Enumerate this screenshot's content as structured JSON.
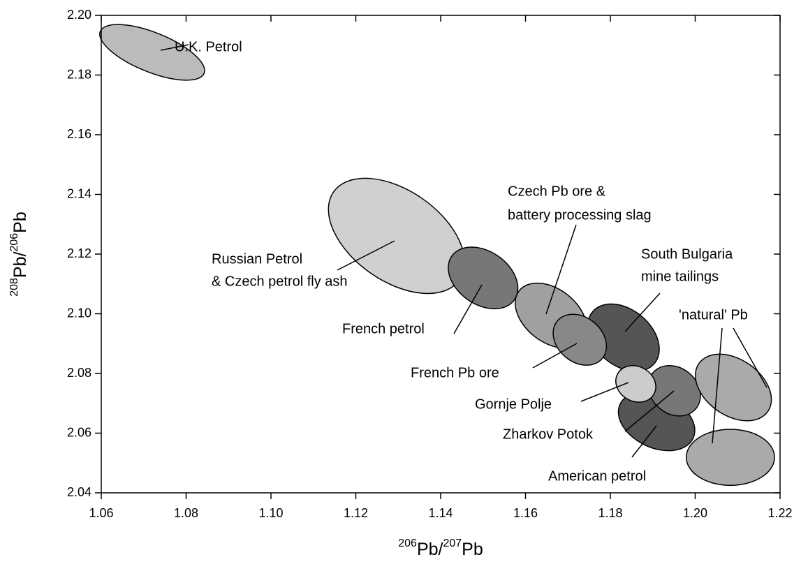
{
  "chart_data": {
    "type": "ellipse-fields",
    "xlabel": [
      "206",
      "Pb/",
      "207",
      "Pb"
    ],
    "ylabel": [
      "208",
      "Pb/",
      "206",
      "Pb"
    ],
    "xlim": [
      1.06,
      1.22
    ],
    "ylim": [
      2.04,
      2.2
    ],
    "xticks": [
      1.06,
      1.08,
      {
        "value": 1.1,
        "label": "1.10"
      },
      1.12,
      1.14,
      1.16,
      1.18,
      {
        "value": 1.2,
        "label": "1.20"
      },
      1.22
    ],
    "yticks": [
      2.04,
      2.06,
      2.08,
      {
        "value": 2.1,
        "label": "2.10"
      },
      2.12,
      2.14,
      2.16,
      2.18,
      {
        "value": 2.2,
        "label": "2.20"
      }
    ],
    "regions": [
      {
        "label": [
          "U.K. Petrol"
        ],
        "color": "#bbbbbb",
        "ellipses": [
          {
            "x": 1.072,
            "y": 2.1876,
            "rx": 0.0132,
            "ry": 0.0066,
            "angle": 22
          }
        ]
      },
      {
        "label": [
          "Russian Petrol",
          "& Czech petrol fly ash"
        ],
        "color": "#d0d0d0",
        "ellipses": [
          {
            "x": 1.1296,
            "y": 2.1261,
            "rx": 0.0181,
            "ry": 0.0152,
            "angle": 35
          }
        ]
      },
      {
        "label": [
          "French petrol"
        ],
        "color": "#777777",
        "ellipses": [
          {
            "x": 1.15,
            "y": 2.112,
            "rx": 0.009,
            "ry": 0.0089,
            "angle": 35
          }
        ]
      },
      {
        "label": [
          "Czech Pb ore &",
          "battery processing slag"
        ],
        "color": "#a0a0a0",
        "ellipses": [
          {
            "x": 1.166,
            "y": 2.0994,
            "rx": 0.0095,
            "ry": 0.0089,
            "angle": 38
          }
        ]
      },
      {
        "label": [
          "South Bulgaria",
          "mine tailings"
        ],
        "color": "#555555",
        "ellipses": [
          {
            "x": 1.1831,
            "y": 2.092,
            "rx": 0.0095,
            "ry": 0.0094,
            "angle": 40
          }
        ]
      },
      {
        "label": [
          "French Pb ore"
        ],
        "color": "#888888",
        "ellipses": [
          {
            "x": 1.1728,
            "y": 2.0913,
            "rx": 0.0069,
            "ry": 0.0075,
            "angle": 40
          }
        ]
      },
      {
        "label": [
          "American petrol"
        ],
        "color": "#555555",
        "ellipses": [
          {
            "x": 1.1909,
            "y": 2.064,
            "rx": 0.0095,
            "ry": 0.0089,
            "angle": 25
          }
        ]
      },
      {
        "label": [
          "Zharkov Potok"
        ],
        "color": "#777777",
        "ellipses": [
          {
            "x": 1.1951,
            "y": 2.0742,
            "rx": 0.0066,
            "ry": 0.0077,
            "angle": 40
          }
        ]
      },
      {
        "label": [
          "Gornje Polje"
        ],
        "color": "#cccccc",
        "ellipses": [
          {
            "x": 1.186,
            "y": 2.0765,
            "rx": 0.0049,
            "ry": 0.0058,
            "angle": 30
          }
        ]
      },
      {
        "label": [
          "'natural' Pb"
        ],
        "color": "#aaaaaa",
        "ellipses": [
          {
            "x": 1.209,
            "y": 2.0753,
            "rx": 0.0099,
            "ry": 0.0094,
            "angle": 35
          },
          {
            "x": 1.2083,
            "y": 2.0519,
            "rx": 0.0104,
            "ry": 0.0094,
            "angle": 0
          }
        ]
      }
    ]
  }
}
